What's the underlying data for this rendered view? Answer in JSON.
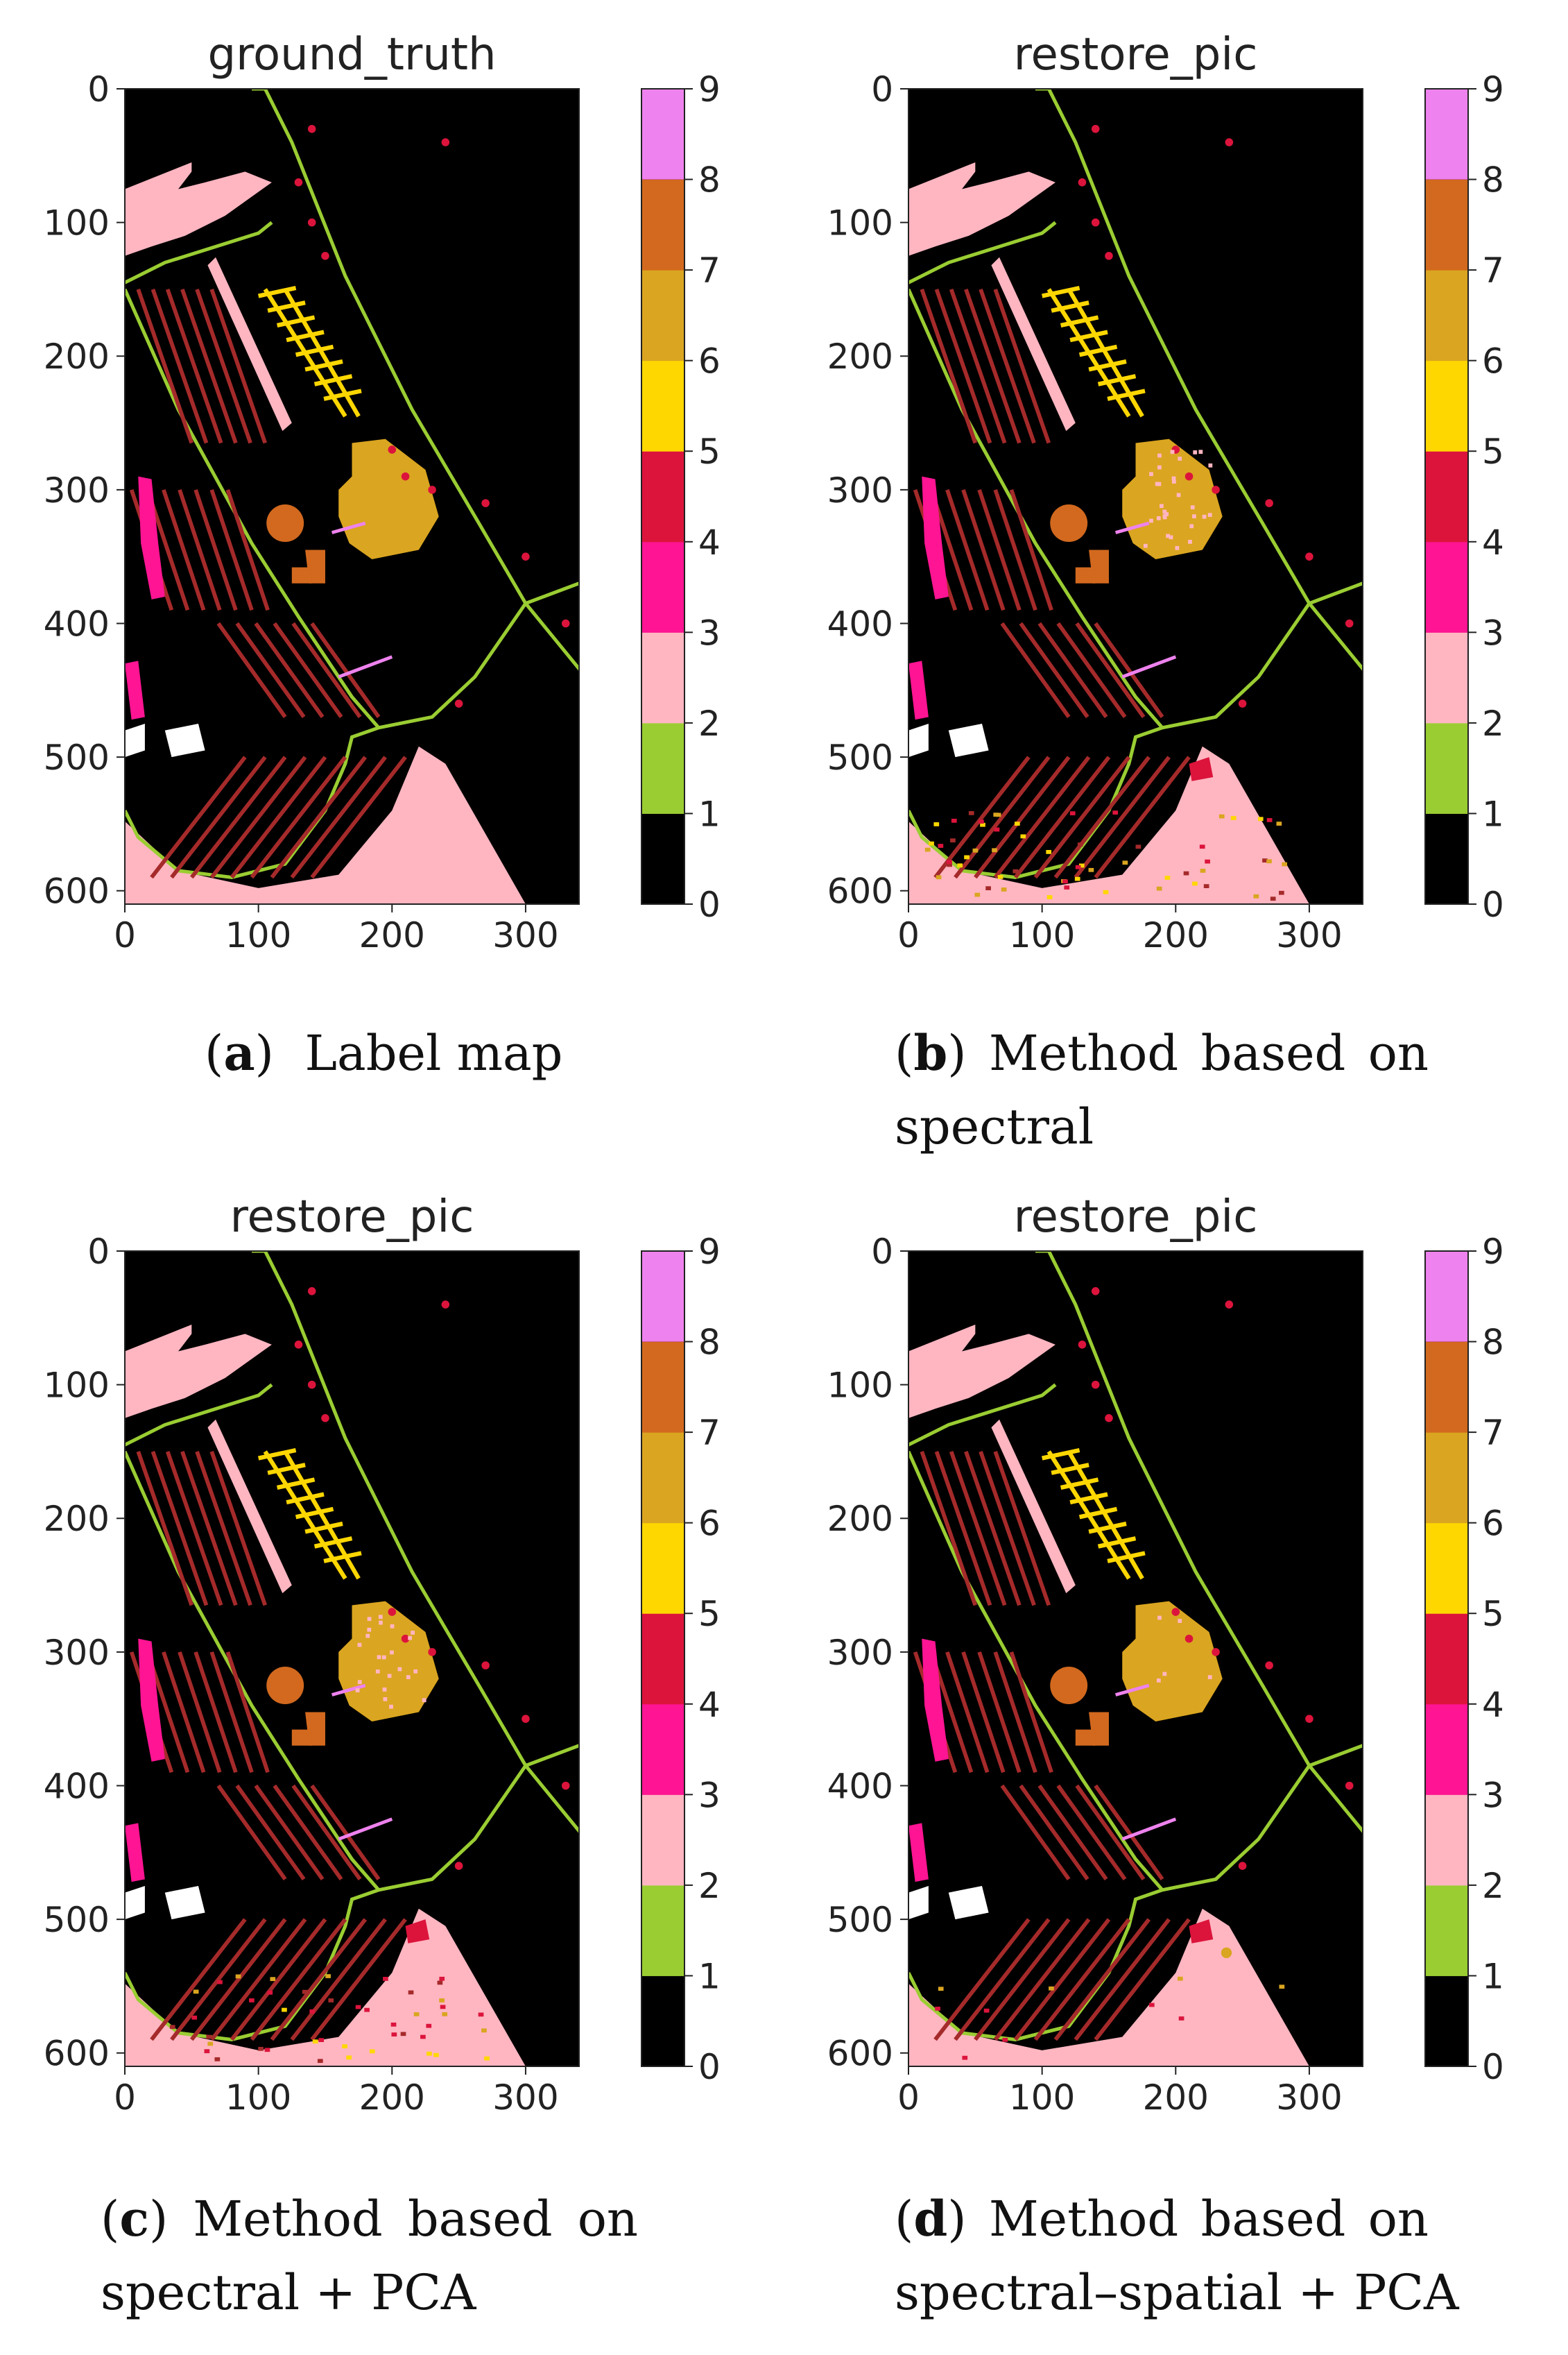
{
  "chart_data": [
    {
      "type": "heatmap",
      "title": "ground_truth",
      "xticks": [
        0,
        100,
        200,
        300
      ],
      "yticks": [
        0,
        100,
        200,
        300,
        400,
        500,
        600
      ],
      "xlim": [
        0,
        340
      ],
      "ylim": [
        610,
        0
      ],
      "colorbar": {
        "ticks": [
          0,
          1,
          2,
          3,
          4,
          5,
          6,
          7,
          8,
          9
        ],
        "range": [
          0,
          9
        ]
      },
      "caption": {
        "label": "a",
        "text": "Label map"
      }
    },
    {
      "type": "heatmap",
      "title": "restore_pic",
      "xticks": [
        0,
        100,
        200,
        300
      ],
      "yticks": [
        0,
        100,
        200,
        300,
        400,
        500,
        600
      ],
      "xlim": [
        0,
        340
      ],
      "ylim": [
        610,
        0
      ],
      "colorbar": {
        "ticks": [
          0,
          1,
          2,
          3,
          4,
          5,
          6,
          7,
          8,
          9
        ],
        "range": [
          0,
          9
        ]
      },
      "caption": {
        "label": "b",
        "text": "Method based on spectral"
      }
    },
    {
      "type": "heatmap",
      "title": "restore_pic",
      "xticks": [
        0,
        100,
        200,
        300
      ],
      "yticks": [
        0,
        100,
        200,
        300,
        400,
        500,
        600
      ],
      "xlim": [
        0,
        340
      ],
      "ylim": [
        610,
        0
      ],
      "colorbar": {
        "ticks": [
          0,
          1,
          2,
          3,
          4,
          5,
          6,
          7,
          8,
          9
        ],
        "range": [
          0,
          9
        ]
      },
      "caption": {
        "label": "c",
        "text": "Method based on spectral + PCA"
      }
    },
    {
      "type": "heatmap",
      "title": "restore_pic",
      "xticks": [
        0,
        100,
        200,
        300
      ],
      "yticks": [
        0,
        100,
        200,
        300,
        400,
        500,
        600
      ],
      "xlim": [
        0,
        340
      ],
      "ylim": [
        610,
        0
      ],
      "colorbar": {
        "ticks": [
          0,
          1,
          2,
          3,
          4,
          5,
          6,
          7,
          8,
          9
        ],
        "range": [
          0,
          9
        ]
      },
      "caption": {
        "label": "d",
        "text": "Method based on spectral–spatial + PCA"
      }
    }
  ],
  "colors": {
    "class_colors": [
      "#000000",
      "#9ACD32",
      "#FFB6C1",
      "#FF1493",
      "#DC143C",
      "#FFD700",
      "#DAA520",
      "#D2691E",
      "#A52A2A",
      "#EE82EE"
    ]
  },
  "captions": {
    "a": {
      "label": "a",
      "line1": "Label map"
    },
    "b": {
      "label": "b",
      "w1": "Method",
      "w2": "based",
      "w3": "on",
      "line2": "spectral"
    },
    "c": {
      "label": "c",
      "w1": "Method",
      "w2": "based",
      "w3": "on",
      "line2": "spectral + PCA"
    },
    "d": {
      "label": "d",
      "w1": "Method",
      "w2": "based",
      "w3": "on",
      "line2": "spectral–spatial + PCA"
    }
  }
}
